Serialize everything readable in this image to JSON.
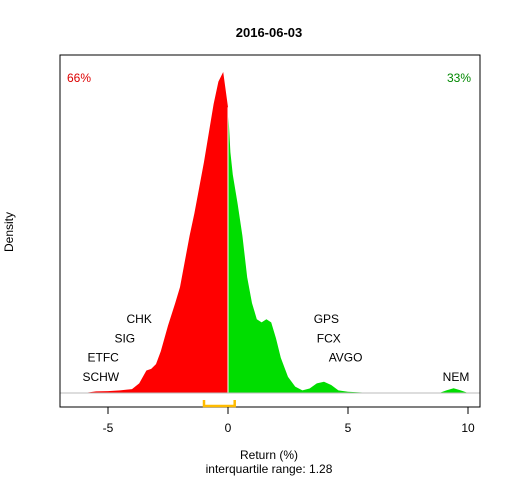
{
  "chart_data": {
    "type": "area",
    "title": "2016-06-03",
    "xlabel": "Return (%)",
    "ylabel": "Density",
    "subtitle": "interquartile range: 1.28",
    "xlim": [
      -7,
      10.5
    ],
    "xticks": [
      -5,
      0,
      5,
      10
    ],
    "ylim": [
      0,
      1
    ],
    "grid": false,
    "split_x": 0,
    "left_pct_label": "66%",
    "right_pct_label": "33%",
    "colors": {
      "negative": "#ff0000",
      "positive": "#00dd00",
      "left_pct": "#dd0000",
      "right_pct": "#008800",
      "iqr": "#ffbb00",
      "baseline": "#bbbbbb"
    },
    "iqr": [
      -1,
      0.28
    ],
    "density": [
      [
        -6.0,
        0.0
      ],
      [
        -5.5,
        0.005
      ],
      [
        -5.0,
        0.006
      ],
      [
        -4.5,
        0.008
      ],
      [
        -4.0,
        0.012
      ],
      [
        -3.7,
        0.03
      ],
      [
        -3.4,
        0.07
      ],
      [
        -3.2,
        0.075
      ],
      [
        -3.0,
        0.09
      ],
      [
        -2.8,
        0.13
      ],
      [
        -2.5,
        0.21
      ],
      [
        -2.2,
        0.28
      ],
      [
        -2.0,
        0.33
      ],
      [
        -1.8,
        0.41
      ],
      [
        -1.6,
        0.49
      ],
      [
        -1.4,
        0.56
      ],
      [
        -1.2,
        0.64
      ],
      [
        -1.0,
        0.72
      ],
      [
        -0.8,
        0.81
      ],
      [
        -0.6,
        0.9
      ],
      [
        -0.4,
        0.97
      ],
      [
        -0.2,
        1.0
      ],
      [
        0.0,
        0.89
      ],
      [
        0.1,
        0.75
      ],
      [
        0.2,
        0.68
      ],
      [
        0.4,
        0.59
      ],
      [
        0.6,
        0.49
      ],
      [
        0.8,
        0.36
      ],
      [
        1.0,
        0.28
      ],
      [
        1.2,
        0.23
      ],
      [
        1.4,
        0.22
      ],
      [
        1.6,
        0.23
      ],
      [
        1.8,
        0.22
      ],
      [
        2.0,
        0.17
      ],
      [
        2.2,
        0.11
      ],
      [
        2.5,
        0.05
      ],
      [
        2.8,
        0.02
      ],
      [
        3.1,
        0.008
      ],
      [
        3.4,
        0.014
      ],
      [
        3.7,
        0.03
      ],
      [
        4.0,
        0.035
      ],
      [
        4.3,
        0.025
      ],
      [
        4.6,
        0.008
      ],
      [
        5.0,
        0.004
      ],
      [
        5.5,
        0.002
      ],
      [
        6.0,
        0.0
      ],
      [
        8.8,
        0.0
      ],
      [
        9.1,
        0.008
      ],
      [
        9.4,
        0.015
      ],
      [
        9.7,
        0.008
      ],
      [
        10.0,
        0.0
      ]
    ],
    "annotations": [
      {
        "text": "CHK",
        "x": -3.7,
        "y": 0.23
      },
      {
        "text": "SIG",
        "x": -4.3,
        "y": 0.17
      },
      {
        "text": "ETFC",
        "x": -5.2,
        "y": 0.11
      },
      {
        "text": "SCHW",
        "x": -5.3,
        "y": 0.05
      },
      {
        "text": "GPS",
        "x": 4.1,
        "y": 0.23
      },
      {
        "text": "FCX",
        "x": 4.2,
        "y": 0.17
      },
      {
        "text": "AVGO",
        "x": 4.9,
        "y": 0.11
      },
      {
        "text": "NEM",
        "x": 9.5,
        "y": 0.05
      }
    ]
  }
}
